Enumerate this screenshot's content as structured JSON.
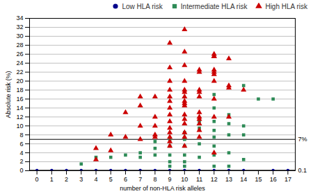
{
  "chart_data": {
    "type": "scatter",
    "xlabel": "number of non-HLA risk alleles",
    "ylabel": "Absolute risk (%)",
    "xlim": [
      -0.5,
      17.5
    ],
    "ylim": [
      0,
      34
    ],
    "xticks": [
      0,
      1,
      2,
      3,
      4,
      5,
      6,
      7,
      8,
      9,
      10,
      11,
      12,
      13,
      14,
      15,
      16,
      17
    ],
    "yticks": [
      0,
      2,
      4,
      6,
      8,
      10,
      12,
      14,
      16,
      18,
      20,
      22,
      24,
      26,
      28,
      30,
      32,
      34
    ],
    "grid": "y",
    "legend": "upper right",
    "annotations": [
      {
        "y": 7.0,
        "label": "7%"
      },
      {
        "y": 0.1,
        "label": "0.1"
      }
    ],
    "series": [
      {
        "name": "Low HLA risk",
        "color": "#00008b",
        "marker": "circle",
        "x": [
          0,
          1,
          2,
          3,
          4,
          5,
          6,
          7,
          8,
          9,
          10,
          11,
          12,
          13,
          14,
          16,
          17
        ],
        "values": [
          0.1,
          0.1,
          0.1,
          0.1,
          0.1,
          0.1,
          0.1,
          0.1,
          0.1,
          0.1,
          0.1,
          0.1,
          0.1,
          0.1,
          0.1,
          0.1,
          0.1
        ]
      },
      {
        "name": "Intermediate HLA risk",
        "color": "#2e8b57",
        "marker": "square",
        "x": [
          3,
          4,
          5,
          6,
          7,
          7,
          8,
          8,
          8,
          9,
          9,
          9,
          9,
          9,
          10,
          10,
          10,
          10,
          10,
          10,
          11,
          11,
          11,
          11,
          12,
          12,
          12,
          12,
          12,
          12,
          12,
          12,
          13,
          13,
          13,
          13,
          13,
          14,
          14,
          14,
          14,
          15,
          16
        ],
        "values": [
          1.5,
          3.0,
          3.0,
          3.5,
          3.0,
          4.0,
          3.5,
          5.0,
          6.5,
          1.0,
          2.0,
          3.5,
          5.5,
          7.0,
          1.0,
          2.0,
          3.5,
          5.5,
          7.0,
          8.5,
          3.0,
          6.0,
          9.5,
          11.0,
          1.0,
          3.5,
          5.5,
          7.5,
          9.0,
          11.0,
          14.0,
          17.0,
          1.0,
          4.0,
          8.0,
          10.5,
          12.5,
          2.5,
          8.0,
          10.0,
          19.0,
          16.0,
          16.0
        ]
      },
      {
        "name": "High HLA risk",
        "color": "#cc0000",
        "marker": "triangle",
        "x": [
          4,
          4,
          5,
          5,
          6,
          6,
          7,
          7,
          7,
          7,
          8,
          8,
          8,
          8,
          8,
          9,
          9,
          9,
          9,
          9,
          9,
          9,
          9,
          9,
          9,
          9,
          9,
          9,
          9,
          10,
          10,
          10,
          10,
          10,
          10,
          10,
          10,
          10,
          10,
          10,
          10,
          10,
          10,
          10,
          10,
          11,
          11,
          11,
          11,
          11,
          11,
          11,
          11,
          11,
          11,
          11,
          12,
          12,
          12,
          12,
          12,
          12,
          12,
          12,
          12,
          12,
          13,
          13,
          13,
          13,
          14
        ],
        "values": [
          2.5,
          5.0,
          4.5,
          8.0,
          7.5,
          13.0,
          7.0,
          10.0,
          14.5,
          16.5,
          7.5,
          8.0,
          10.0,
          12.0,
          16.5,
          5.5,
          6.5,
          7.5,
          8.5,
          9.5,
          11.0,
          12.5,
          14.0,
          15.5,
          16.5,
          18.0,
          20.0,
          23.0,
          28.5,
          5.5,
          7.5,
          8.5,
          10.5,
          11.5,
          12.5,
          14.5,
          15.0,
          15.5,
          16.5,
          17.5,
          18.0,
          20.0,
          23.5,
          26.5,
          31.5,
          7.5,
          9.0,
          10.5,
          11.5,
          12.0,
          13.0,
          16.5,
          17.5,
          18.0,
          22.0,
          22.5,
          4.0,
          12.0,
          16.0,
          20.0,
          21.5,
          22.0,
          22.5,
          25.5,
          25.5,
          26.0,
          12.0,
          18.5,
          19.0,
          25.0,
          18.0
        ]
      }
    ]
  }
}
